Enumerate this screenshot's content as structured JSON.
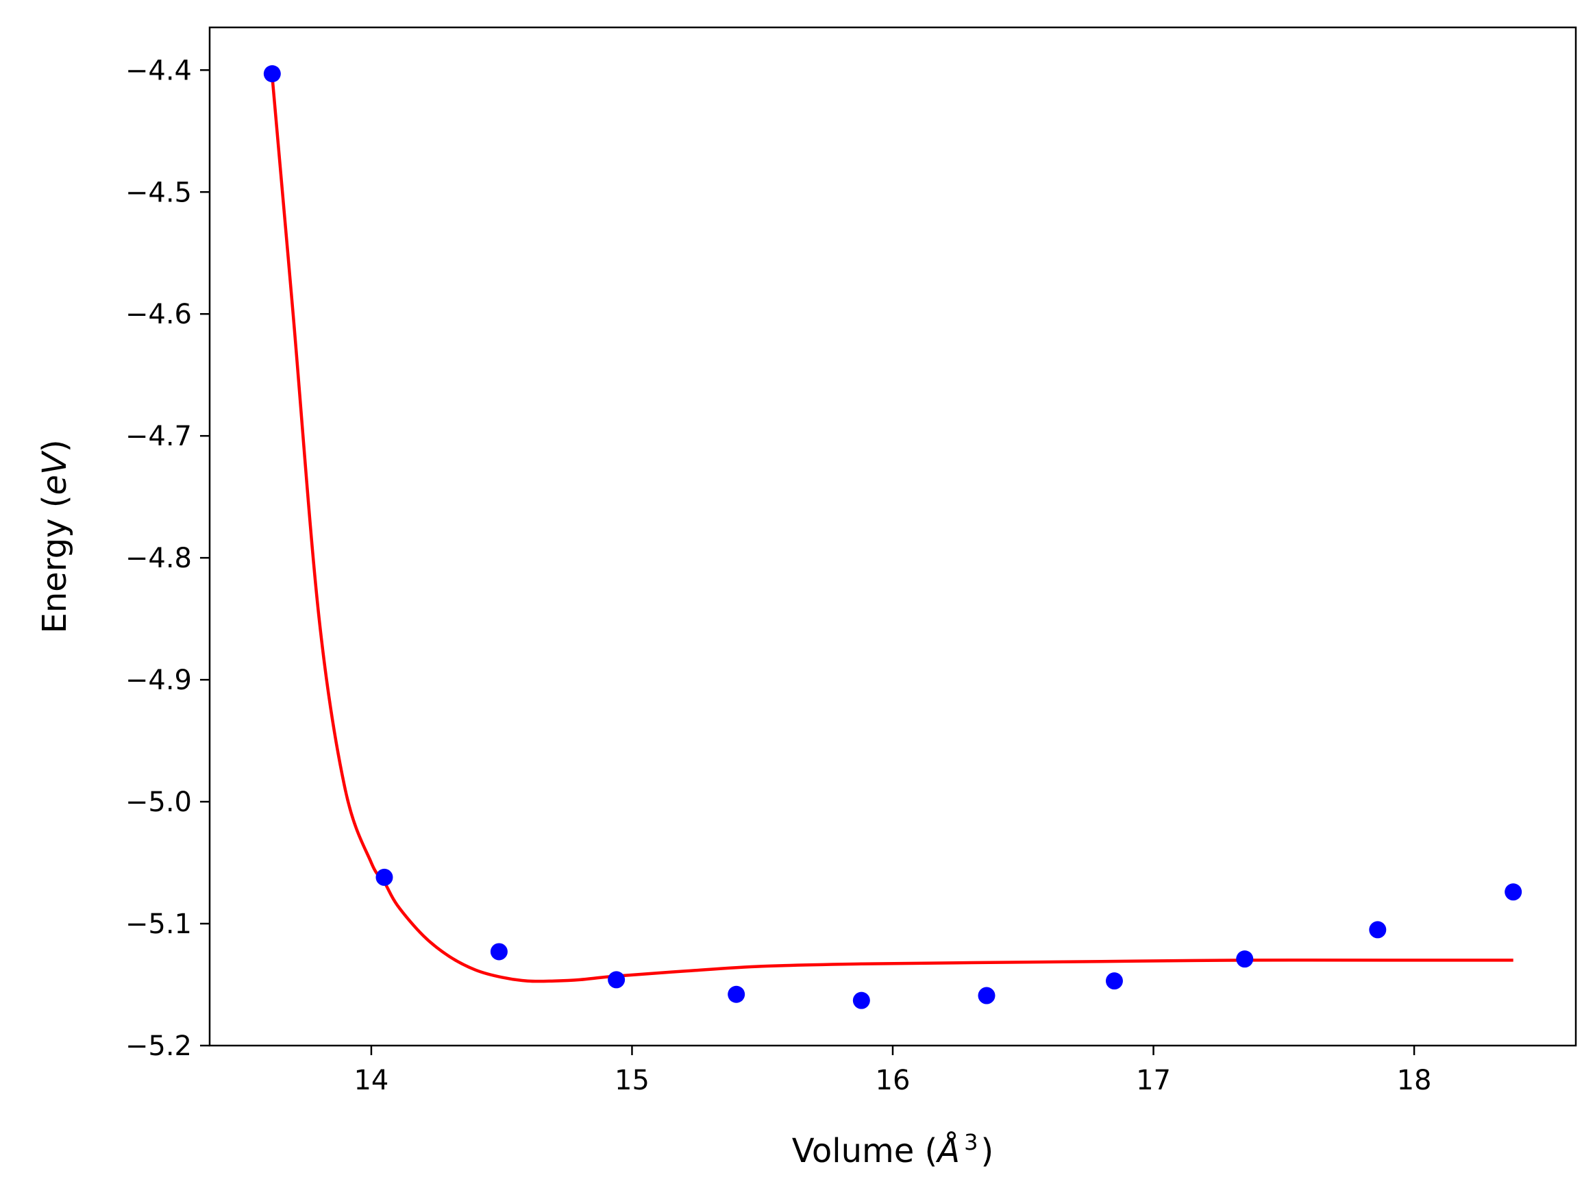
{
  "chart_data": {
    "type": "scatter",
    "title": "",
    "xlabel": "Volume (",
    "xlabel_symbol": "Å",
    "xlabel_exponent": "3",
    "xlabel_close": ")",
    "ylabel": "Energy (",
    "ylabel_unit": "eV",
    "ylabel_close": ")",
    "xlim": [
      13.38,
      18.62
    ],
    "ylim": [
      -5.2,
      -4.365
    ],
    "xticks": [
      14,
      15,
      16,
      17,
      18
    ],
    "xtick_labels": [
      "14",
      "15",
      "16",
      "17",
      "18"
    ],
    "yticks": [
      -4.4,
      -4.5,
      -4.6,
      -4.7,
      -4.8,
      -4.9,
      -5.0,
      -5.1,
      -5.2
    ],
    "ytick_labels": [
      "−4.4",
      "−4.5",
      "−4.6",
      "−4.7",
      "−4.8",
      "−4.9",
      "−5.0",
      "−5.1",
      "−5.2"
    ],
    "grid": false,
    "series": [
      {
        "kind": "points",
        "color": "#0000ff",
        "x": [
          13.62,
          14.05,
          14.49,
          14.94,
          15.4,
          15.88,
          16.36,
          16.85,
          17.35,
          17.86,
          18.38
        ],
        "y": [
          -4.403,
          -5.062,
          -5.123,
          -5.146,
          -5.158,
          -5.163,
          -5.159,
          -5.147,
          -5.129,
          -5.105,
          -5.074
        ]
      },
      {
        "kind": "line",
        "color": "#ff0000",
        "x": [
          13.62,
          13.7,
          13.8,
          13.9,
          14.0,
          14.05,
          14.1,
          14.2,
          14.3,
          14.4,
          14.5,
          14.6,
          14.7,
          14.8,
          14.94,
          15.2,
          15.5,
          15.88,
          16.3,
          16.8,
          17.35,
          17.9,
          18.38
        ],
        "y": [
          -4.405,
          -4.6,
          -4.85,
          -4.99,
          -5.05,
          -5.066,
          -5.085,
          -5.11,
          -5.127,
          -5.138,
          -5.144,
          -5.147,
          -5.147,
          -5.146,
          -5.143,
          -5.139,
          -5.135,
          -5.133,
          -5.132,
          -5.131,
          -5.13,
          -5.13,
          -5.13
        ]
      }
    ]
  }
}
